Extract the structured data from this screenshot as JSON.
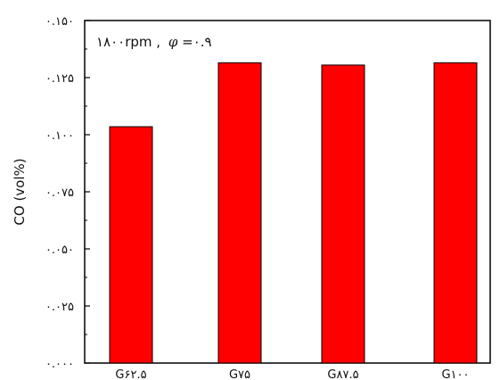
{
  "chart_data": {
    "type": "bar",
    "categories": [
      "G۶۲.۵",
      "G۷۵",
      "G۸۷.۵",
      "G۱۰۰"
    ],
    "values": [
      0.1035,
      0.1315,
      0.1305,
      0.1315
    ],
    "ylabel": "CO (vol%)",
    "xlabel": "",
    "ylim": [
      0,
      0.15
    ],
    "yticks": [
      0,
      0.025,
      0.05,
      0.075,
      0.1,
      0.125,
      0.15
    ],
    "ytick_labels": [
      "۰.۰۰۰",
      "۰.۰۲۵",
      "۰.۰۵۰",
      "۰.۰۷۵",
      "۰.۱۰۰",
      "۰.۱۲۵",
      "۰.۱۵۰"
    ],
    "annotation": {
      "speed": "۱۸۰۰rpm ,",
      "symbol": "φ",
      "value": "=۰.۹"
    },
    "bar_color": "#ff0000",
    "bar_edge_color": "#000000",
    "grid": false,
    "legend": "none"
  }
}
